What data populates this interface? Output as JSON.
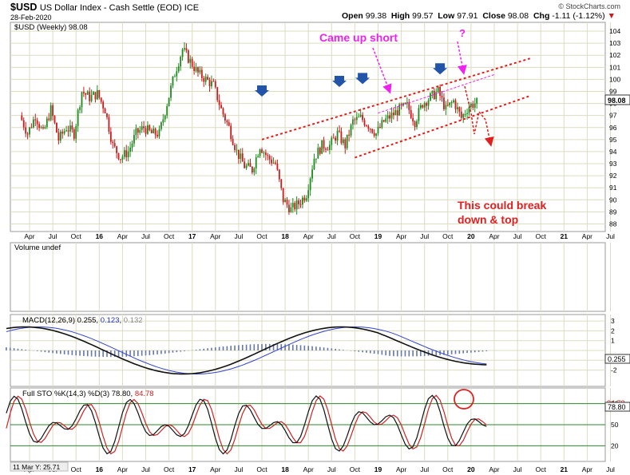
{
  "header": {
    "symbol": "$USD",
    "description": "US Dollar Index - Cash Settle (EOD)",
    "exchange": "ICE",
    "date": "28-Feb-2020",
    "open_label": "Open",
    "open": "99.38",
    "high_label": "High",
    "high": "99.57",
    "low_label": "Low",
    "low": "97.91",
    "close_label": "Close",
    "close": "98.08",
    "chg_label": "Chg",
    "chg": "-1.11 (-1.12%)",
    "credit": "© StockCharts.com"
  },
  "chart_data": [
    {
      "type": "candlestick",
      "legend": "$USD (Weekly) 98.08",
      "last_value": "98.08",
      "y_ticks": [
        88,
        89,
        90,
        91,
        92,
        93,
        94,
        95,
        96,
        97,
        98,
        99,
        100,
        101,
        102,
        103,
        104
      ],
      "ylim": [
        87.5,
        104.6
      ],
      "x_ticks": [
        "Apr",
        "Jul",
        "Oct",
        "16",
        "Apr",
        "Jul",
        "Oct",
        "17",
        "Apr",
        "Jul",
        "Oct",
        "18",
        "Apr",
        "Jul",
        "Oct",
        "19",
        "Apr",
        "Jul",
        "Oct",
        "20",
        "Apr",
        "Jul",
        "Oct",
        "21",
        "Apr",
        "Jul"
      ],
      "x_ticks_bold": [
        "16",
        "17",
        "18",
        "19",
        "20",
        "21"
      ],
      "colors": {
        "up": "#1d8a1d",
        "down": "#cc1a1a",
        "channel": "#e02020",
        "annotation_magenta": "#ee22ee",
        "arrow_blue": "#2255aa"
      },
      "annotations": [
        "Came up short",
        "?",
        "This could break",
        "down & top"
      ],
      "price_path": [
        {
          "x": "2015-03",
          "y": 97
        },
        {
          "x": "2015-04",
          "y": 95.5
        },
        {
          "x": "2015-05",
          "y": 97
        },
        {
          "x": "2015-06",
          "y": 95.5
        },
        {
          "x": "2015-07",
          "y": 97.5
        },
        {
          "x": "2015-08",
          "y": 95
        },
        {
          "x": "2015-09",
          "y": 96
        },
        {
          "x": "2015-10",
          "y": 95.5
        },
        {
          "x": "2015-11",
          "y": 99
        },
        {
          "x": "2015-12",
          "y": 98.5
        },
        {
          "x": "2016-01",
          "y": 98.8
        },
        {
          "x": "2016-02",
          "y": 97.5
        },
        {
          "x": "2016-03",
          "y": 94.5
        },
        {
          "x": "2016-04",
          "y": 93.5
        },
        {
          "x": "2016-05",
          "y": 94
        },
        {
          "x": "2016-06",
          "y": 95.5
        },
        {
          "x": "2016-07",
          "y": 96
        },
        {
          "x": "2016-08",
          "y": 95.5
        },
        {
          "x": "2016-09",
          "y": 95.5
        },
        {
          "x": "2016-10",
          "y": 98
        },
        {
          "x": "2016-11",
          "y": 100.5
        },
        {
          "x": "2016-12",
          "y": 102.5
        },
        {
          "x": "2017-01",
          "y": 101.5
        },
        {
          "x": "2017-02",
          "y": 100.5
        },
        {
          "x": "2017-03",
          "y": 100
        },
        {
          "x": "2017-04",
          "y": 99.5
        },
        {
          "x": "2017-05",
          "y": 97.5
        },
        {
          "x": "2017-06",
          "y": 96
        },
        {
          "x": "2017-07",
          "y": 94
        },
        {
          "x": "2017-08",
          "y": 92.8
        },
        {
          "x": "2017-09",
          "y": 92.5
        },
        {
          "x": "2017-10",
          "y": 94.5
        },
        {
          "x": "2017-11",
          "y": 93.5
        },
        {
          "x": "2017-12",
          "y": 93
        },
        {
          "x": "2018-01",
          "y": 90
        },
        {
          "x": "2018-02",
          "y": 89.2
        },
        {
          "x": "2018-03",
          "y": 89.7
        },
        {
          "x": "2018-04",
          "y": 90.5
        },
        {
          "x": "2018-05",
          "y": 93.5
        },
        {
          "x": "2018-06",
          "y": 94.5
        },
        {
          "x": "2018-07",
          "y": 94.5
        },
        {
          "x": "2018-08",
          "y": 95.5
        },
        {
          "x": "2018-09",
          "y": 94.5
        },
        {
          "x": "2018-10",
          "y": 96.5
        },
        {
          "x": "2018-11",
          "y": 96.8
        },
        {
          "x": "2018-12",
          "y": 96.2
        },
        {
          "x": "2019-01",
          "y": 95.5
        },
        {
          "x": "2019-02",
          "y": 96.5
        },
        {
          "x": "2019-03",
          "y": 97
        },
        {
          "x": "2019-04",
          "y": 97.5
        },
        {
          "x": "2019-05",
          "y": 97.8
        },
        {
          "x": "2019-06",
          "y": 96.5
        },
        {
          "x": "2019-07",
          "y": 98
        },
        {
          "x": "2019-08",
          "y": 98.5
        },
        {
          "x": "2019-09",
          "y": 99
        },
        {
          "x": "2019-10",
          "y": 97.5
        },
        {
          "x": "2019-11",
          "y": 98.2
        },
        {
          "x": "2019-12",
          "y": 96.8
        },
        {
          "x": "2020-01",
          "y": 97.8
        },
        {
          "x": "2020-02",
          "y": 98.08
        }
      ],
      "channel_lines": [
        {
          "x1": "2017-10",
          "y1": 95,
          "x2": "2020-05",
          "y2": 101.6
        },
        {
          "x1": "2018-10",
          "y1": 93.5,
          "x2": "2020-05",
          "y2": 98.5
        }
      ],
      "blue_arrows": [
        "2017-10",
        "2018-08",
        "2018-11",
        "2019-09"
      ]
    },
    {
      "type": "bar",
      "legend": "Volume undef"
    },
    {
      "type": "line",
      "legend_label": "MACD(12,26,9)",
      "macd": "0.255",
      "signal": "0.123",
      "histogram": "0.132",
      "last_value": "0.255",
      "y_ticks": [
        "3",
        "2",
        "1",
        "-1",
        "-2"
      ],
      "ylim": [
        -3.5,
        3.5
      ]
    },
    {
      "type": "line",
      "legend_label": "Full STO %K(14,3) %D(3)",
      "k": "78.80",
      "d": "84.78",
      "last_k": "78.80",
      "last_d": "84.78",
      "y_ticks": [
        "80",
        "50",
        "20"
      ],
      "ylim": [
        0,
        100
      ]
    }
  ],
  "footer_note": "11 Mar Y: 25.71"
}
